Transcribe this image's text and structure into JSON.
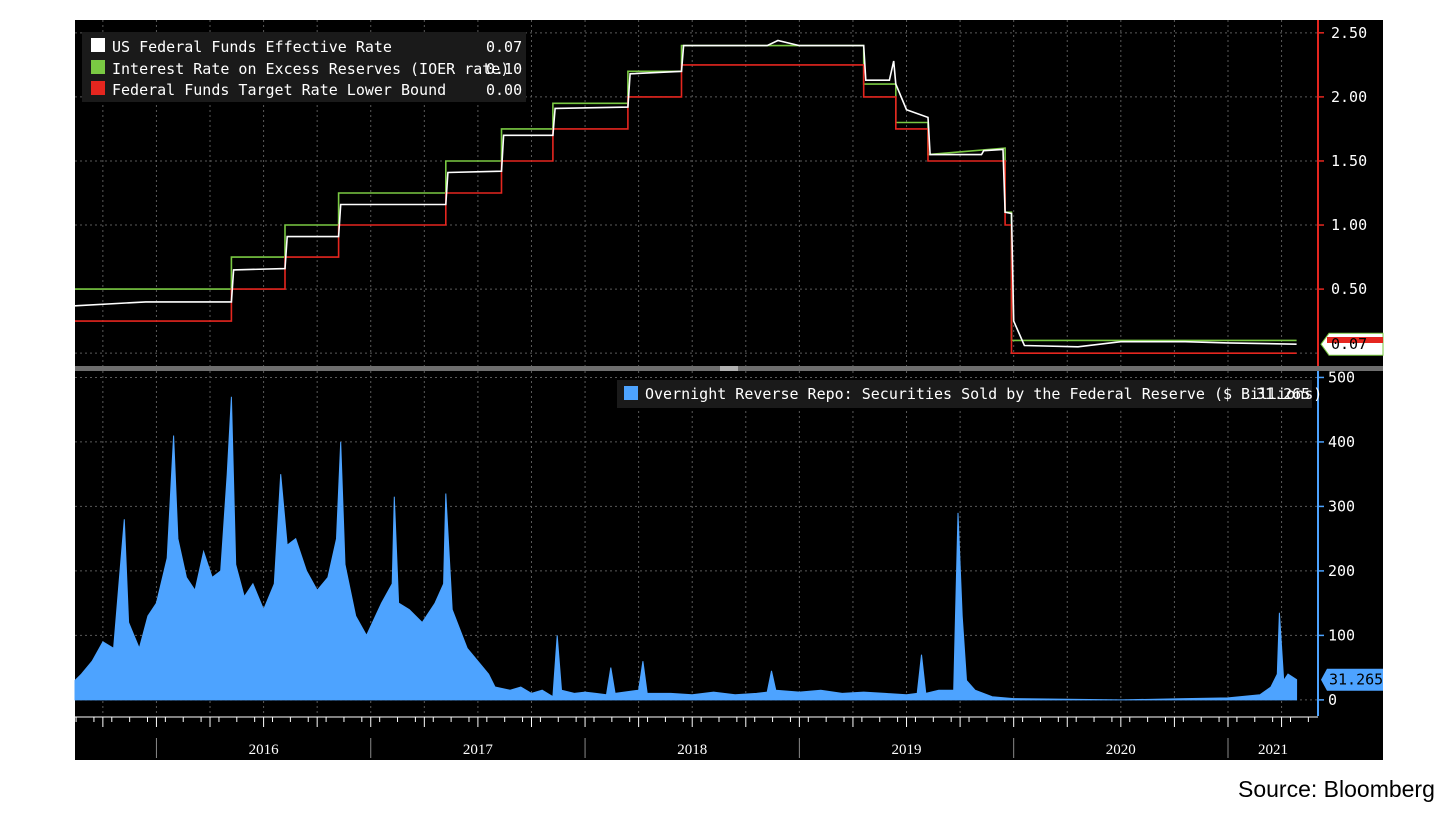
{
  "source": "Source: Bloomberg",
  "colors": {
    "background": "#000000",
    "grid": "#5a5a5a",
    "effective_rate": "#ffffff",
    "ioer": "#7ac943",
    "target_lower": "#e5261f",
    "repo": "#4da3ff"
  },
  "chart_data": [
    {
      "type": "line",
      "panel": "rates",
      "x_unit": "year",
      "xlim": [
        2015.62,
        2021.42
      ],
      "ylim": [
        -0.1,
        2.6
      ],
      "y_ticks": [
        {
          "value": 2.5,
          "label": "2.50"
        },
        {
          "value": 2.0,
          "label": "2.00"
        },
        {
          "value": 1.5,
          "label": "1.50"
        },
        {
          "value": 1.0,
          "label": "1.00"
        },
        {
          "value": 0.5,
          "label": "0.50"
        }
      ],
      "y_axis_color": "#e5261f",
      "grid": true,
      "legend_position": "top-left",
      "series": [
        {
          "name": "US Federal Funds Effective Rate",
          "last_value": "0.07",
          "color": "#ffffff",
          "points": [
            [
              2015.62,
              0.37
            ],
            [
              2015.95,
              0.4
            ],
            [
              2016.35,
              0.4
            ],
            [
              2016.36,
              0.65
            ],
            [
              2016.6,
              0.66
            ],
            [
              2016.61,
              0.91
            ],
            [
              2016.85,
              0.91
            ],
            [
              2016.86,
              1.16
            ],
            [
              2017.35,
              1.16
            ],
            [
              2017.36,
              1.41
            ],
            [
              2017.61,
              1.42
            ],
            [
              2017.62,
              1.7
            ],
            [
              2017.85,
              1.7
            ],
            [
              2017.86,
              1.91
            ],
            [
              2018.2,
              1.92
            ],
            [
              2018.21,
              2.18
            ],
            [
              2018.45,
              2.2
            ],
            [
              2018.46,
              2.4
            ],
            [
              2018.85,
              2.4
            ],
            [
              2018.9,
              2.44
            ],
            [
              2019.0,
              2.4
            ],
            [
              2019.3,
              2.4
            ],
            [
              2019.31,
              2.13
            ],
            [
              2019.42,
              2.13
            ],
            [
              2019.44,
              2.28
            ],
            [
              2019.45,
              2.1
            ],
            [
              2019.5,
              1.9
            ],
            [
              2019.6,
              1.84
            ],
            [
              2019.61,
              1.55
            ],
            [
              2019.85,
              1.55
            ],
            [
              2019.86,
              1.58
            ],
            [
              2019.95,
              1.59
            ],
            [
              2019.96,
              1.1
            ],
            [
              2019.99,
              1.09
            ],
            [
              2020.0,
              0.25
            ],
            [
              2020.05,
              0.06
            ],
            [
              2020.3,
              0.05
            ],
            [
              2020.5,
              0.09
            ],
            [
              2020.8,
              0.09
            ],
            [
              2021.0,
              0.08
            ],
            [
              2021.32,
              0.07
            ]
          ]
        },
        {
          "name": "Interest Rate on Excess Reserves (IOER rate)",
          "last_value": "0.10",
          "color": "#7ac943",
          "points": [
            [
              2015.62,
              0.5
            ],
            [
              2016.35,
              0.5
            ],
            [
              2016.35,
              0.75
            ],
            [
              2016.6,
              0.75
            ],
            [
              2016.6,
              1.0
            ],
            [
              2016.85,
              1.0
            ],
            [
              2016.85,
              1.25
            ],
            [
              2017.35,
              1.25
            ],
            [
              2017.35,
              1.5
            ],
            [
              2017.61,
              1.5
            ],
            [
              2017.61,
              1.75
            ],
            [
              2017.85,
              1.75
            ],
            [
              2017.85,
              1.95
            ],
            [
              2018.2,
              1.95
            ],
            [
              2018.2,
              2.2
            ],
            [
              2018.45,
              2.2
            ],
            [
              2018.45,
              2.4
            ],
            [
              2019.3,
              2.4
            ],
            [
              2019.3,
              2.1
            ],
            [
              2019.45,
              2.1
            ],
            [
              2019.45,
              1.8
            ],
            [
              2019.6,
              1.8
            ],
            [
              2019.6,
              1.55
            ],
            [
              2019.96,
              1.6
            ],
            [
              2019.96,
              1.1
            ],
            [
              2019.99,
              1.1
            ],
            [
              2019.99,
              0.1
            ],
            [
              2021.32,
              0.1
            ]
          ]
        },
        {
          "name": "Federal Funds Target Rate Lower Bound",
          "last_value": "0.00",
          "color": "#e5261f",
          "points": [
            [
              2015.62,
              0.25
            ],
            [
              2016.35,
              0.25
            ],
            [
              2016.35,
              0.5
            ],
            [
              2016.6,
              0.5
            ],
            [
              2016.6,
              0.75
            ],
            [
              2016.85,
              0.75
            ],
            [
              2016.85,
              1.0
            ],
            [
              2017.35,
              1.0
            ],
            [
              2017.35,
              1.25
            ],
            [
              2017.61,
              1.25
            ],
            [
              2017.61,
              1.5
            ],
            [
              2017.85,
              1.5
            ],
            [
              2017.85,
              1.75
            ],
            [
              2018.2,
              1.75
            ],
            [
              2018.2,
              2.0
            ],
            [
              2018.45,
              2.0
            ],
            [
              2018.45,
              2.25
            ],
            [
              2019.3,
              2.25
            ],
            [
              2019.3,
              2.0
            ],
            [
              2019.45,
              2.0
            ],
            [
              2019.45,
              1.75
            ],
            [
              2019.6,
              1.75
            ],
            [
              2019.6,
              1.5
            ],
            [
              2019.96,
              1.5
            ],
            [
              2019.96,
              1.0
            ],
            [
              2019.99,
              1.0
            ],
            [
              2019.99,
              0.0
            ],
            [
              2021.32,
              0.0
            ]
          ]
        }
      ],
      "current_value_tag": "0.07"
    },
    {
      "type": "area",
      "panel": "repo",
      "x_unit": "year",
      "xlim": [
        2015.62,
        2021.42
      ],
      "ylim": [
        -25,
        510
      ],
      "y_ticks": [
        {
          "value": 500,
          "label": "500"
        },
        {
          "value": 400,
          "label": "400"
        },
        {
          "value": 300,
          "label": "300"
        },
        {
          "value": 200,
          "label": "200"
        },
        {
          "value": 100,
          "label": "100"
        },
        {
          "value": 0,
          "label": "0"
        }
      ],
      "y_axis_color": "#4da3ff",
      "grid": true,
      "legend_position": "top-right",
      "series": [
        {
          "name": "Overnight Reverse Repo: Securities Sold by the Federal Reserve ($ Billions)",
          "last_value": "31.265",
          "color": "#4da3ff",
          "points": [
            [
              2015.62,
              30
            ],
            [
              2015.65,
              40
            ],
            [
              2015.7,
              60
            ],
            [
              2015.75,
              90
            ],
            [
              2015.8,
              80
            ],
            [
              2015.85,
              280
            ],
            [
              2015.87,
              120
            ],
            [
              2015.92,
              80
            ],
            [
              2015.96,
              130
            ],
            [
              2016.0,
              150
            ],
            [
              2016.05,
              220
            ],
            [
              2016.08,
              410
            ],
            [
              2016.1,
              250
            ],
            [
              2016.14,
              190
            ],
            [
              2016.18,
              170
            ],
            [
              2016.22,
              230
            ],
            [
              2016.26,
              190
            ],
            [
              2016.3,
              200
            ],
            [
              2016.33,
              350
            ],
            [
              2016.35,
              470
            ],
            [
              2016.37,
              210
            ],
            [
              2016.41,
              160
            ],
            [
              2016.45,
              180
            ],
            [
              2016.5,
              140
            ],
            [
              2016.55,
              180
            ],
            [
              2016.58,
              350
            ],
            [
              2016.61,
              240
            ],
            [
              2016.65,
              250
            ],
            [
              2016.7,
              200
            ],
            [
              2016.75,
              170
            ],
            [
              2016.8,
              190
            ],
            [
              2016.84,
              250
            ],
            [
              2016.86,
              400
            ],
            [
              2016.88,
              210
            ],
            [
              2016.93,
              130
            ],
            [
              2016.98,
              100
            ],
            [
              2017.05,
              150
            ],
            [
              2017.1,
              180
            ],
            [
              2017.11,
              315
            ],
            [
              2017.13,
              150
            ],
            [
              2017.18,
              140
            ],
            [
              2017.24,
              120
            ],
            [
              2017.3,
              150
            ],
            [
              2017.34,
              180
            ],
            [
              2017.35,
              320
            ],
            [
              2017.38,
              140
            ],
            [
              2017.45,
              80
            ],
            [
              2017.5,
              60
            ],
            [
              2017.55,
              40
            ],
            [
              2017.58,
              20
            ],
            [
              2017.65,
              15
            ],
            [
              2017.7,
              20
            ],
            [
              2017.75,
              10
            ],
            [
              2017.8,
              15
            ],
            [
              2017.85,
              5
            ],
            [
              2017.87,
              100
            ],
            [
              2017.89,
              15
            ],
            [
              2017.95,
              10
            ],
            [
              2018.0,
              12
            ],
            [
              2018.05,
              10
            ],
            [
              2018.1,
              8
            ],
            [
              2018.12,
              50
            ],
            [
              2018.14,
              10
            ],
            [
              2018.25,
              15
            ],
            [
              2018.27,
              60
            ],
            [
              2018.29,
              10
            ],
            [
              2018.4,
              10
            ],
            [
              2018.5,
              8
            ],
            [
              2018.6,
              12
            ],
            [
              2018.7,
              8
            ],
            [
              2018.8,
              10
            ],
            [
              2018.85,
              12
            ],
            [
              2018.87,
              45
            ],
            [
              2018.89,
              15
            ],
            [
              2019.0,
              12
            ],
            [
              2019.1,
              15
            ],
            [
              2019.2,
              10
            ],
            [
              2019.3,
              12
            ],
            [
              2019.4,
              10
            ],
            [
              2019.5,
              8
            ],
            [
              2019.55,
              10
            ],
            [
              2019.57,
              70
            ],
            [
              2019.59,
              10
            ],
            [
              2019.65,
              15
            ],
            [
              2019.72,
              15
            ],
            [
              2019.74,
              290
            ],
            [
              2019.76,
              130
            ],
            [
              2019.78,
              30
            ],
            [
              2019.82,
              15
            ],
            [
              2019.9,
              5
            ],
            [
              2020.0,
              2
            ],
            [
              2020.5,
              0
            ],
            [
              2020.8,
              2
            ],
            [
              2021.0,
              3
            ],
            [
              2021.15,
              8
            ],
            [
              2021.2,
              20
            ],
            [
              2021.23,
              40
            ],
            [
              2021.24,
              135
            ],
            [
              2021.26,
              30
            ],
            [
              2021.28,
              40
            ],
            [
              2021.32,
              31.265
            ]
          ]
        }
      ],
      "current_value_tag": "31.265"
    }
  ],
  "x_axis": {
    "year_labels": [
      {
        "label": "2016",
        "year": 2016
      },
      {
        "label": "2017",
        "year": 2017
      },
      {
        "label": "2018",
        "year": 2018
      },
      {
        "label": "2019",
        "year": 2019
      },
      {
        "label": "2020",
        "year": 2020
      },
      {
        "label": "2021",
        "year": 2021
      }
    ]
  }
}
